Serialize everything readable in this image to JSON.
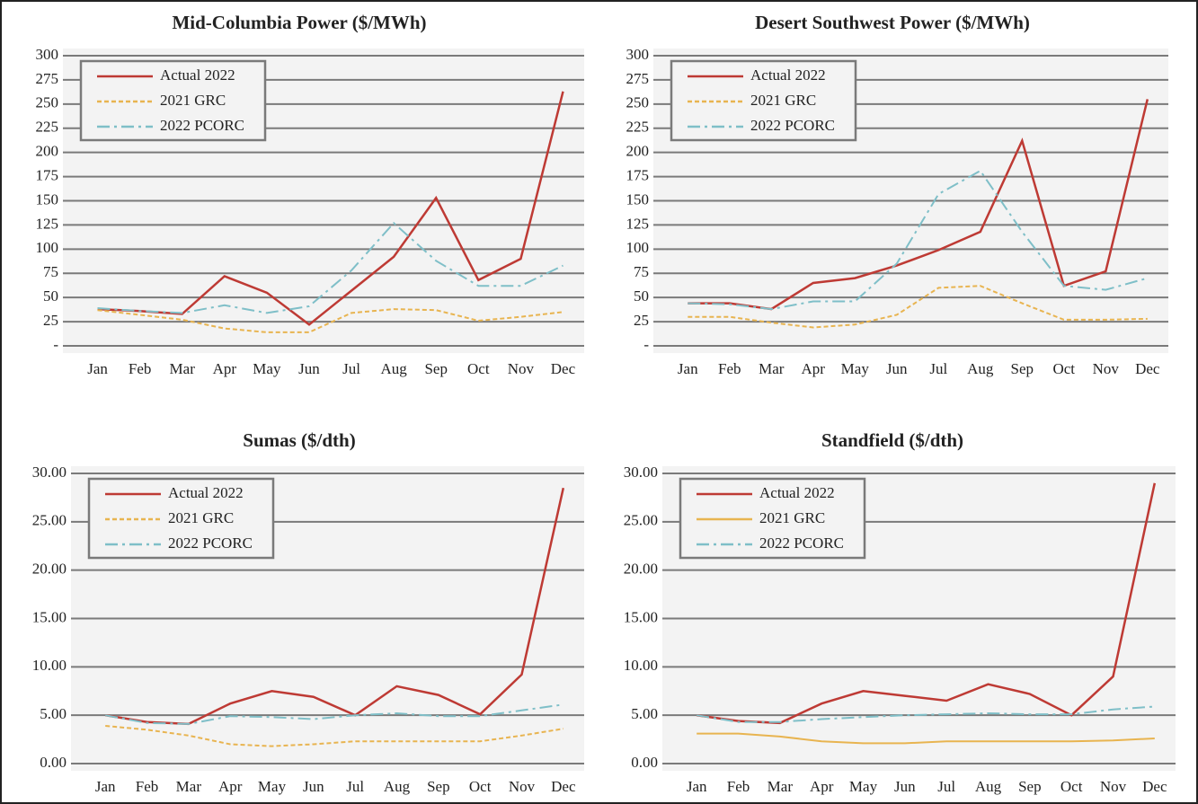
{
  "chart_data": [
    {
      "type": "line",
      "title": "Mid-Columbia Power ($/MWh)",
      "categories": [
        "Jan",
        "Feb",
        "Mar",
        "Apr",
        "May",
        "Jun",
        "Jul",
        "Aug",
        "Sep",
        "Oct",
        "Nov",
        "Dec"
      ],
      "ylim": [
        0,
        300
      ],
      "yticks": [
        {
          "value": 0,
          "label": "-"
        },
        25,
        50,
        75,
        100,
        125,
        150,
        175,
        200,
        225,
        250,
        275,
        300
      ],
      "grid": true,
      "legend": "upper left",
      "series": [
        {
          "name": "Actual 2022",
          "color": "#be3a34",
          "style": "solid",
          "values": [
            38,
            36,
            33,
            72,
            55,
            22,
            57,
            92,
            153,
            68,
            90,
            263
          ]
        },
        {
          "name": "2021 GRC",
          "color": "#e8b450",
          "style": "dashed",
          "values": [
            37,
            32,
            27,
            18,
            14,
            14,
            34,
            38,
            37,
            26,
            30,
            35
          ]
        },
        {
          "name": "2022 PCORC",
          "color": "#7fbfc8",
          "style": "dashdot",
          "values": [
            39,
            36,
            34,
            42,
            34,
            41,
            78,
            127,
            88,
            62,
            62,
            83
          ]
        }
      ]
    },
    {
      "type": "line",
      "title": "Desert Southwest Power ($/MWh)",
      "categories": [
        "Jan",
        "Feb",
        "Mar",
        "Apr",
        "May",
        "Jun",
        "Jul",
        "Aug",
        "Sep",
        "Oct",
        "Nov",
        "Dec"
      ],
      "ylim": [
        0,
        300
      ],
      "yticks": [
        {
          "value": 0,
          "label": "-"
        },
        25,
        50,
        75,
        100,
        125,
        150,
        175,
        200,
        225,
        250,
        275,
        300
      ],
      "grid": true,
      "legend": "upper left",
      "series": [
        {
          "name": "Actual 2022",
          "color": "#be3a34",
          "style": "solid",
          "values": [
            44,
            44,
            38,
            65,
            70,
            83,
            99,
            118,
            212,
            62,
            77,
            255
          ]
        },
        {
          "name": "2021 GRC",
          "color": "#e8b450",
          "style": "dashed",
          "values": [
            30,
            30,
            24,
            19,
            22,
            32,
            60,
            62,
            44,
            27,
            27,
            28
          ]
        },
        {
          "name": "2022 PCORC",
          "color": "#7fbfc8",
          "style": "dashdot",
          "values": [
            44,
            43,
            38,
            46,
            46,
            85,
            157,
            181,
            118,
            62,
            58,
            70
          ]
        }
      ]
    },
    {
      "type": "line",
      "title": "Sumas ($/dth)",
      "categories": [
        "Jan",
        "Feb",
        "Mar",
        "Apr",
        "May",
        "Jun",
        "Jul",
        "Aug",
        "Sep",
        "Oct",
        "Nov",
        "Dec"
      ],
      "ylim": [
        0,
        30
      ],
      "yticks": [
        {
          "value": 0,
          "label": "0.00"
        },
        {
          "value": 5,
          "label": "5.00"
        },
        {
          "value": 10,
          "label": "10.00"
        },
        {
          "value": 15,
          "label": "15.00"
        },
        {
          "value": 20,
          "label": "20.00"
        },
        {
          "value": 25,
          "label": "25.00"
        },
        {
          "value": 30,
          "label": "30.00"
        }
      ],
      "grid": true,
      "legend": "upper left",
      "series": [
        {
          "name": "Actual 2022",
          "color": "#be3a34",
          "style": "solid",
          "values": [
            5.0,
            4.3,
            4.1,
            6.2,
            7.5,
            6.9,
            5.0,
            8.0,
            7.1,
            5.1,
            9.2,
            28.5
          ]
        },
        {
          "name": "2021 GRC",
          "color": "#e8b450",
          "style": "dashed",
          "values": [
            3.9,
            3.5,
            2.9,
            2.0,
            1.8,
            2.0,
            2.3,
            2.3,
            2.3,
            2.3,
            2.9,
            3.6
          ]
        },
        {
          "name": "2022 PCORC",
          "color": "#7fbfc8",
          "style": "dashdot",
          "values": [
            5.0,
            4.2,
            4.1,
            4.9,
            4.8,
            4.6,
            5.0,
            5.2,
            4.9,
            4.9,
            5.5,
            6.1
          ]
        }
      ]
    },
    {
      "type": "line",
      "title": "Standfield ($/dth)",
      "categories": [
        "Jan",
        "Feb",
        "Mar",
        "Apr",
        "May",
        "Jun",
        "Jul",
        "Aug",
        "Sep",
        "Oct",
        "Nov",
        "Dec"
      ],
      "ylim": [
        0,
        30
      ],
      "yticks": [
        {
          "value": 0,
          "label": "0.00"
        },
        {
          "value": 5,
          "label": "5.00"
        },
        {
          "value": 10,
          "label": "10.00"
        },
        {
          "value": 15,
          "label": "15.00"
        },
        {
          "value": 20,
          "label": "20.00"
        },
        {
          "value": 25,
          "label": "25.00"
        },
        {
          "value": 30,
          "label": "30.00"
        }
      ],
      "grid": true,
      "legend": "upper left",
      "series": [
        {
          "name": "Actual 2022",
          "color": "#be3a34",
          "style": "solid",
          "values": [
            5.0,
            4.4,
            4.2,
            6.2,
            7.5,
            7.0,
            6.5,
            8.2,
            7.2,
            5.0,
            9.0,
            29.0
          ]
        },
        {
          "name": "2021 GRC",
          "color": "#e8b450",
          "style": "solid",
          "values": [
            3.1,
            3.1,
            2.8,
            2.3,
            2.1,
            2.1,
            2.3,
            2.3,
            2.3,
            2.3,
            2.4,
            2.6
          ]
        },
        {
          "name": "2022 PCORC",
          "color": "#7fbfc8",
          "style": "dashdot",
          "values": [
            5.0,
            4.3,
            4.3,
            4.6,
            4.8,
            5.0,
            5.1,
            5.2,
            5.1,
            5.1,
            5.6,
            5.9
          ]
        }
      ]
    }
  ]
}
